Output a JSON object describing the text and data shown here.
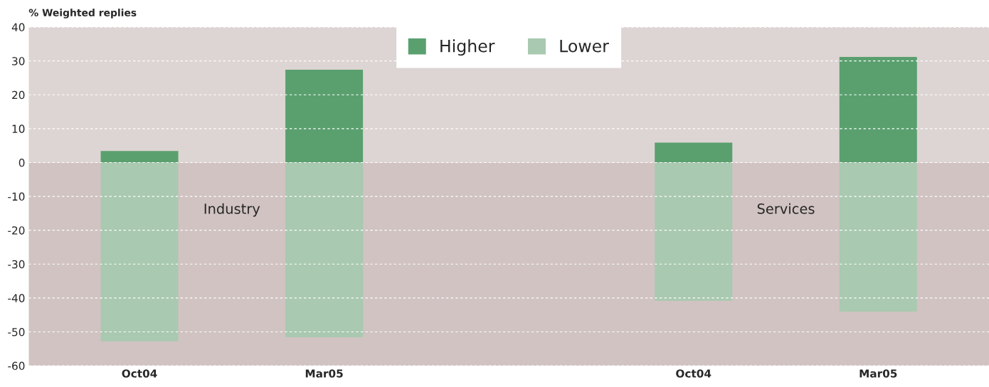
{
  "chart_data": {
    "type": "bar",
    "stacked": true,
    "ylabel": "% Weighted replies",
    "categories": [
      "Oct04",
      "Mar05",
      null,
      "Oct04",
      "Mar05"
    ],
    "series": [
      {
        "name": "Higher",
        "color": "#5aa06f",
        "values": [
          3.4,
          27.4,
          null,
          5.9,
          31.2
        ]
      },
      {
        "name": "Lower",
        "color": "#a9c9b0",
        "values": [
          -52.8,
          -51.6,
          null,
          -40.8,
          -44
        ]
      }
    ],
    "ylim": [
      -60,
      40
    ],
    "yticks": [
      -60,
      -50,
      -40,
      -30,
      -20,
      -10,
      0,
      10,
      20,
      30,
      40
    ],
    "grid": "y",
    "legend": "top",
    "bands": [
      {
        "axis": "y",
        "from": 0,
        "to": 40,
        "color": "#ddd5d3"
      },
      {
        "axis": "y",
        "from": -60,
        "to": 0,
        "color": "#d0c3c2"
      }
    ],
    "annotations": [
      "Industry",
      "Services"
    ]
  }
}
